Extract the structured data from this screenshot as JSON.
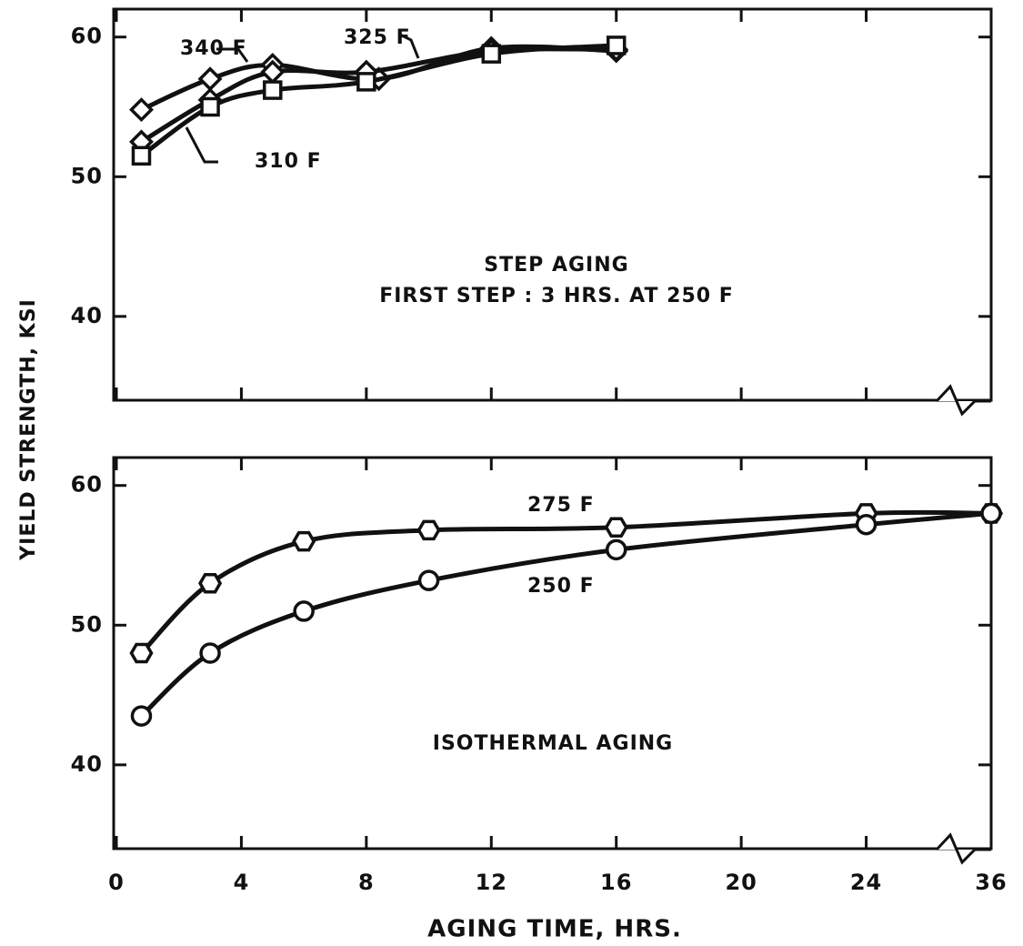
{
  "chart_data": [
    {
      "type": "line",
      "y_label": "YIELD STRENGTH, KSI",
      "annotations": [
        "STEP AGING",
        "FIRST STEP : 3 HRS. AT 250 F"
      ],
      "ylim": [
        34,
        62
      ],
      "yticks": [
        40,
        50,
        60
      ],
      "series": [
        {
          "name": "340 F",
          "marker": "diamond",
          "color": "#111111",
          "x": [
            0.8,
            3,
            5,
            8.4,
            12,
            16
          ],
          "values": [
            54.8,
            57,
            58,
            57,
            59.2,
            59
          ]
        },
        {
          "name": "325 F",
          "marker": "diamond",
          "color": "#111111",
          "x": [
            0.8,
            3,
            5,
            8,
            12,
            16
          ],
          "values": [
            52.5,
            55.5,
            57.5,
            57.5,
            59,
            59.1
          ]
        },
        {
          "name": "310 F",
          "marker": "square",
          "color": "#111111",
          "x": [
            0.8,
            3,
            5,
            8,
            12,
            16
          ],
          "values": [
            51.5,
            55,
            56.2,
            56.8,
            58.8,
            59.4
          ]
        }
      ]
    },
    {
      "type": "line",
      "x_label": "AGING TIME, HRS.",
      "annotations": [
        "ISOTHERMAL AGING"
      ],
      "xlim": [
        0,
        36
      ],
      "xticks": [
        0,
        4,
        8,
        12,
        16,
        20,
        24,
        36
      ],
      "ylim": [
        34,
        62
      ],
      "yticks": [
        40,
        50,
        60
      ],
      "series": [
        {
          "name": "275 F",
          "marker": "hexagon",
          "color": "#111111",
          "x": [
            0.8,
            3,
            6,
            10,
            16,
            24,
            36
          ],
          "values": [
            48,
            53,
            56,
            56.8,
            57,
            58,
            58
          ]
        },
        {
          "name": "250 F",
          "marker": "circle",
          "color": "#111111",
          "x": [
            0.8,
            3,
            6,
            10,
            16,
            24,
            36
          ],
          "values": [
            43.5,
            48,
            51,
            53.2,
            55.4,
            57.2,
            58
          ]
        }
      ]
    }
  ]
}
